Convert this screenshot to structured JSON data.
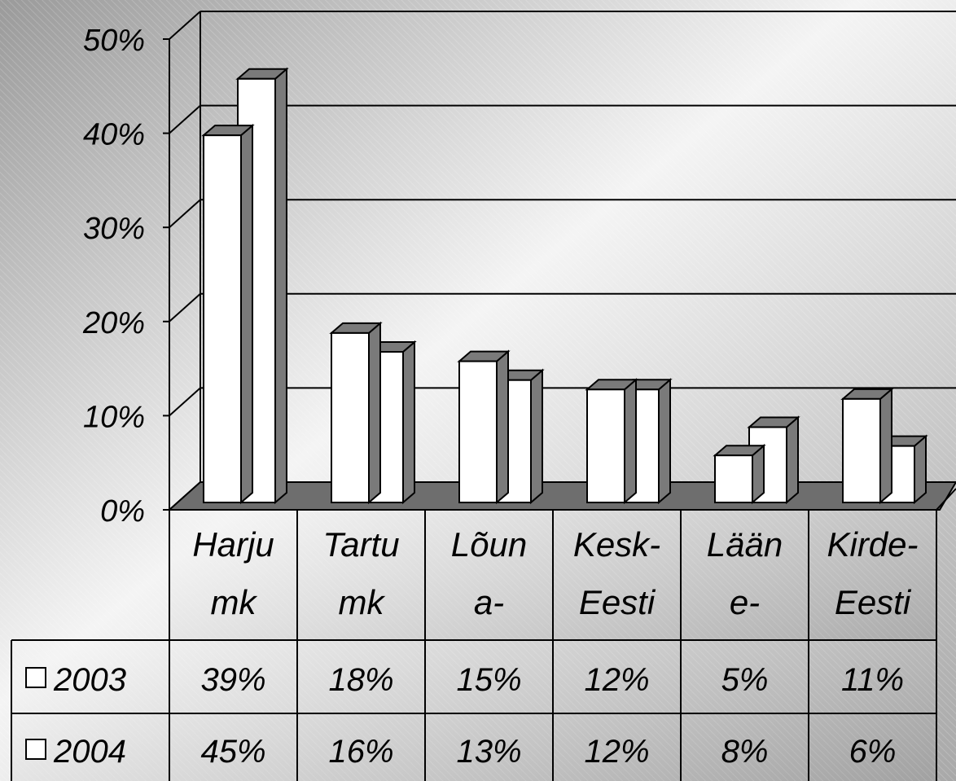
{
  "chart_data": {
    "type": "bar",
    "style": "3d-clustered-column with data table",
    "categories": [
      [
        "Harju",
        "mk"
      ],
      [
        "Tartu",
        "mk"
      ],
      [
        "Lõun",
        "a-"
      ],
      [
        "Kesk-",
        "Eesti"
      ],
      [
        "Lään",
        "e-"
      ],
      [
        "Kirde-",
        "Eesti"
      ]
    ],
    "series": [
      {
        "name": "2003",
        "values": [
          39,
          18,
          15,
          12,
          5,
          11
        ],
        "labels": [
          "39%",
          "18%",
          "15%",
          "12%",
          "5%",
          "11%"
        ]
      },
      {
        "name": "2004",
        "values": [
          45,
          16,
          13,
          12,
          8,
          6
        ],
        "labels": [
          "45%",
          "16%",
          "13%",
          "12%",
          "8%",
          "6%"
        ]
      }
    ],
    "y_ticks": [
      "0%",
      "10%",
      "20%",
      "30%",
      "40%",
      "50%"
    ],
    "ylim": [
      0,
      50
    ],
    "grid": true,
    "legend": "in data table, left of rows",
    "colors": {
      "bar_front": "#ffffff",
      "bar_side": "#7a7a7a",
      "floor": "#6e6e6e",
      "outline": "#000000"
    }
  }
}
